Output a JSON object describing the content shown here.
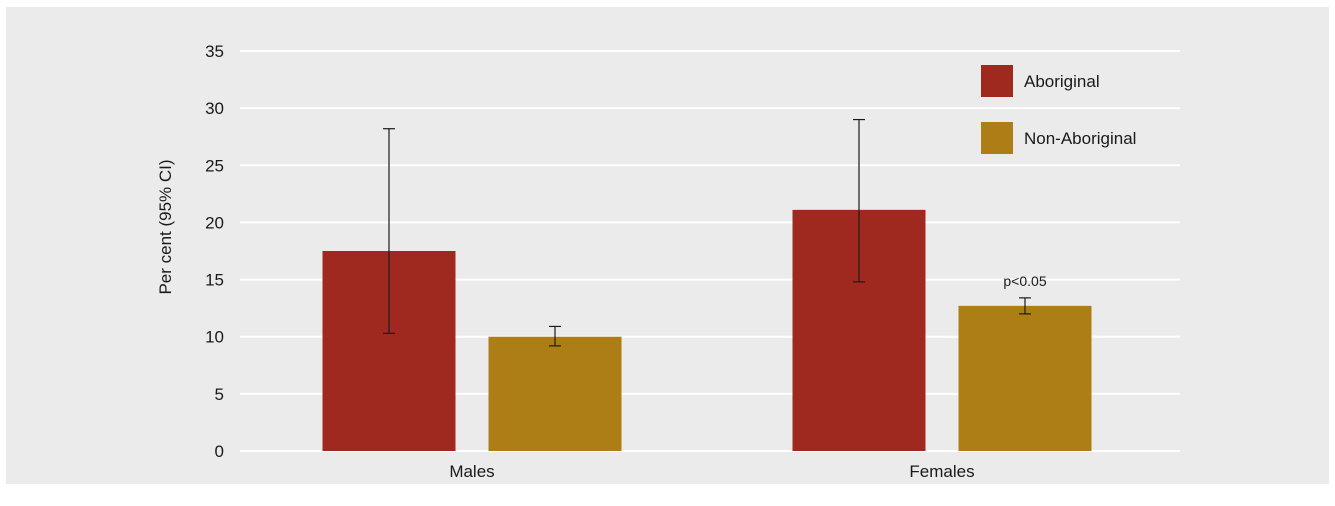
{
  "chart_data": {
    "type": "bar",
    "categories": [
      "Males",
      "Females"
    ],
    "series": [
      {
        "name": "Aboriginal",
        "color": "#a0291f",
        "values": [
          17.5,
          21.1
        ],
        "ci_low": [
          10.3,
          14.8
        ],
        "ci_high": [
          28.2,
          29.0
        ]
      },
      {
        "name": "Non-Aboriginal",
        "color": "#ad7d16",
        "values": [
          10.0,
          12.7
        ],
        "ci_low": [
          9.2,
          12.0
        ],
        "ci_high": [
          10.9,
          13.4
        ]
      }
    ],
    "ylabel": "Per cent (95% CI)",
    "xlabel": "",
    "ylim": [
      0,
      35
    ],
    "yticks": [
      0,
      5,
      10,
      15,
      20,
      25,
      30,
      35
    ],
    "grid": true,
    "legend_position": "top-right",
    "annotations": [
      {
        "text": "p<0.05",
        "category": "Females",
        "series": "Non-Aboriginal"
      }
    ]
  }
}
